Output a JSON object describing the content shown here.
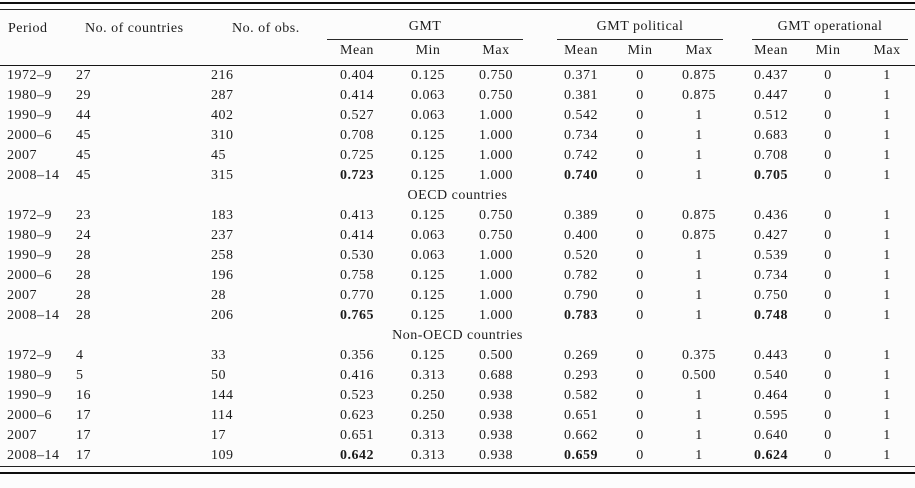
{
  "table": {
    "column_headers": {
      "period": "Period",
      "countries": "No. of countries",
      "obs": "No. of obs."
    },
    "groups": [
      {
        "label": "GMT",
        "sub": [
          "Mean",
          "Min",
          "Max"
        ]
      },
      {
        "label": "GMT political",
        "sub": [
          "Mean",
          "Min",
          "Max"
        ]
      },
      {
        "label": "GMT operational",
        "sub": [
          "Mean",
          "Min",
          "Max"
        ]
      }
    ],
    "sections": [
      {
        "label": "",
        "rows": [
          {
            "period": "1972–9",
            "countries": "27",
            "obs": "216",
            "bold_means": false,
            "values": [
              "0.404",
              "0.125",
              "0.750",
              "0.371",
              "0",
              "0.875",
              "0.437",
              "0",
              "1"
            ]
          },
          {
            "period": "1980–9",
            "countries": "29",
            "obs": "287",
            "bold_means": false,
            "values": [
              "0.414",
              "0.063",
              "0.750",
              "0.381",
              "0",
              "0.875",
              "0.447",
              "0",
              "1"
            ]
          },
          {
            "period": "1990–9",
            "countries": "44",
            "obs": "402",
            "bold_means": false,
            "values": [
              "0.527",
              "0.063",
              "1.000",
              "0.542",
              "0",
              "1",
              "0.512",
              "0",
              "1"
            ]
          },
          {
            "period": "2000–6",
            "countries": "45",
            "obs": "310",
            "bold_means": false,
            "values": [
              "0.708",
              "0.125",
              "1.000",
              "0.734",
              "0",
              "1",
              "0.683",
              "0",
              "1"
            ]
          },
          {
            "period": "2007",
            "countries": "45",
            "obs": "45",
            "bold_means": false,
            "values": [
              "0.725",
              "0.125",
              "1.000",
              "0.742",
              "0",
              "1",
              "0.708",
              "0",
              "1"
            ]
          },
          {
            "period": "2008–14",
            "countries": "45",
            "obs": "315",
            "bold_means": true,
            "values": [
              "0.723",
              "0.125",
              "1.000",
              "0.740",
              "0",
              "1",
              "0.705",
              "0",
              "1"
            ]
          }
        ]
      },
      {
        "label": "OECD countries",
        "rows": [
          {
            "period": "1972–9",
            "countries": "23",
            "obs": "183",
            "bold_means": false,
            "values": [
              "0.413",
              "0.125",
              "0.750",
              "0.389",
              "0",
              "0.875",
              "0.436",
              "0",
              "1"
            ]
          },
          {
            "period": "1980–9",
            "countries": "24",
            "obs": "237",
            "bold_means": false,
            "values": [
              "0.414",
              "0.063",
              "0.750",
              "0.400",
              "0",
              "0.875",
              "0.427",
              "0",
              "1"
            ]
          },
          {
            "period": "1990–9",
            "countries": "28",
            "obs": "258",
            "bold_means": false,
            "values": [
              "0.530",
              "0.063",
              "1.000",
              "0.520",
              "0",
              "1",
              "0.539",
              "0",
              "1"
            ]
          },
          {
            "period": "2000–6",
            "countries": "28",
            "obs": "196",
            "bold_means": false,
            "values": [
              "0.758",
              "0.125",
              "1.000",
              "0.782",
              "0",
              "1",
              "0.734",
              "0",
              "1"
            ]
          },
          {
            "period": "2007",
            "countries": "28",
            "obs": "28",
            "bold_means": false,
            "values": [
              "0.770",
              "0.125",
              "1.000",
              "0.790",
              "0",
              "1",
              "0.750",
              "0",
              "1"
            ]
          },
          {
            "period": "2008–14",
            "countries": "28",
            "obs": "206",
            "bold_means": true,
            "values": [
              "0.765",
              "0.125",
              "1.000",
              "0.783",
              "0",
              "1",
              "0.748",
              "0",
              "1"
            ]
          }
        ]
      },
      {
        "label": "Non-OECD countries",
        "rows": [
          {
            "period": "1972–9",
            "countries": "4",
            "obs": "33",
            "bold_means": false,
            "values": [
              "0.356",
              "0.125",
              "0.500",
              "0.269",
              "0",
              "0.375",
              "0.443",
              "0",
              "1"
            ]
          },
          {
            "period": "1980–9",
            "countries": "5",
            "obs": "50",
            "bold_means": false,
            "values": [
              "0.416",
              "0.313",
              "0.688",
              "0.293",
              "0",
              "0.500",
              "0.540",
              "0",
              "1"
            ]
          },
          {
            "period": "1990–9",
            "countries": "16",
            "obs": "144",
            "bold_means": false,
            "values": [
              "0.523",
              "0.250",
              "0.938",
              "0.582",
              "0",
              "1",
              "0.464",
              "0",
              "1"
            ]
          },
          {
            "period": "2000–6",
            "countries": "17",
            "obs": "114",
            "bold_means": false,
            "values": [
              "0.623",
              "0.250",
              "0.938",
              "0.651",
              "0",
              "1",
              "0.595",
              "0",
              "1"
            ]
          },
          {
            "period": "2007",
            "countries": "17",
            "obs": "17",
            "bold_means": false,
            "values": [
              "0.651",
              "0.313",
              "0.938",
              "0.662",
              "0",
              "1",
              "0.640",
              "0",
              "1"
            ]
          },
          {
            "period": "2008–14",
            "countries": "17",
            "obs": "109",
            "bold_means": true,
            "values": [
              "0.642",
              "0.313",
              "0.938",
              "0.659",
              "0",
              "1",
              "0.624",
              "0",
              "1"
            ]
          }
        ]
      }
    ]
  }
}
